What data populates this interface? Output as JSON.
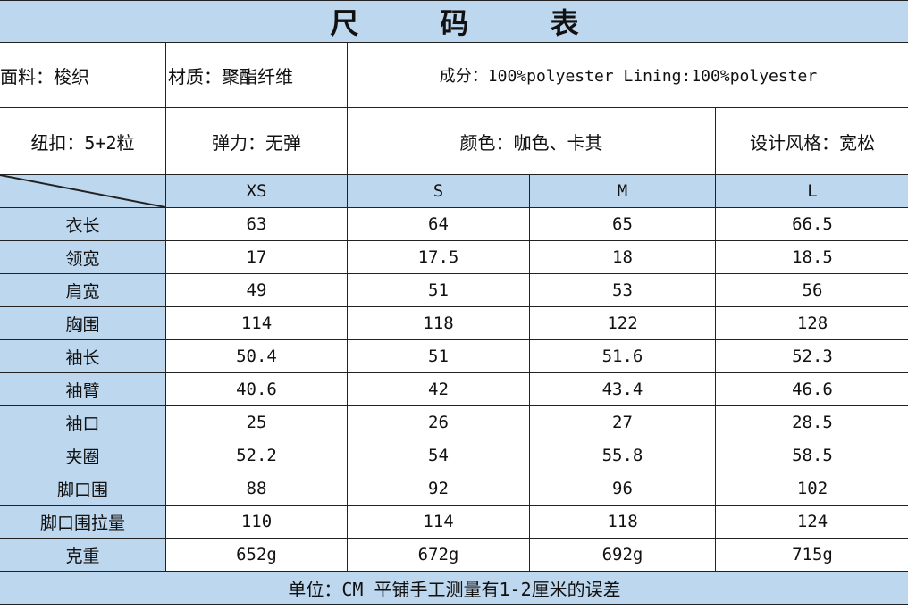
{
  "title": "尺 码 表",
  "info_row1": {
    "fabric": "面料：梭织",
    "material": "材质：聚酯纤维",
    "composition": "成分：100%polyester Lining:100%polyester"
  },
  "info_row2": {
    "buttons": "纽扣：5+2粒",
    "elasticity": "弹力：无弹",
    "color": "颜色：咖色、卡其",
    "style": "设计风格：宽松"
  },
  "sizes": [
    "XS",
    "S",
    "M",
    "L"
  ],
  "rows": [
    {
      "label": "衣长",
      "values": [
        "63",
        "64",
        "65",
        "66.5"
      ]
    },
    {
      "label": "领宽",
      "values": [
        "17",
        "17.5",
        "18",
        "18.5"
      ]
    },
    {
      "label": "肩宽",
      "values": [
        "49",
        "51",
        "53",
        "56"
      ]
    },
    {
      "label": "胸围",
      "values": [
        "114",
        "118",
        "122",
        "128"
      ]
    },
    {
      "label": "袖长",
      "values": [
        "50.4",
        "51",
        "51.6",
        "52.3"
      ]
    },
    {
      "label": "袖臂",
      "values": [
        "40.6",
        "42",
        "43.4",
        "46.6"
      ]
    },
    {
      "label": "袖口",
      "values": [
        "25",
        "26",
        "27",
        "28.5"
      ]
    },
    {
      "label": "夹圈",
      "values": [
        "52.2",
        "54",
        "55.8",
        "58.5"
      ]
    },
    {
      "label": "脚口围",
      "values": [
        "88",
        "92",
        "96",
        "102"
      ]
    },
    {
      "label": "脚口围拉量",
      "values": [
        "110",
        "114",
        "118",
        "124"
      ]
    },
    {
      "label": "克重",
      "values": [
        "652g",
        "672g",
        "692g",
        "715g"
      ]
    }
  ],
  "footer": "单位：CM 平铺手工测量有1-2厘米的误差",
  "colors": {
    "header_bg": "#bdd7ee",
    "border": "#222222"
  }
}
